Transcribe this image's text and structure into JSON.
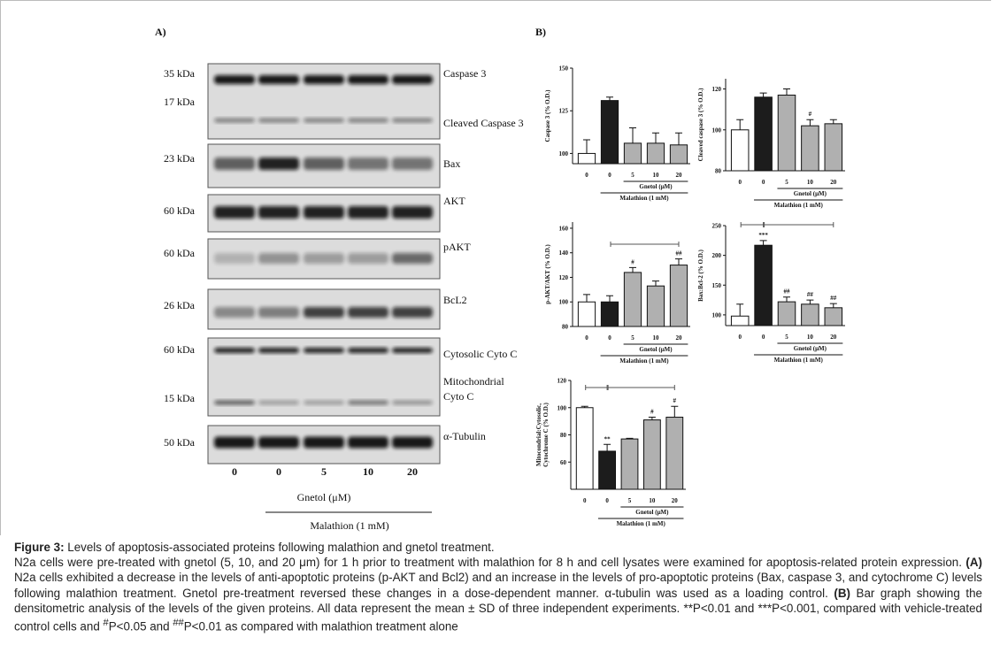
{
  "panels": {
    "a": "A)",
    "b": "B)"
  },
  "blot": {
    "kda": [
      "35 kDa",
      "17 kDa",
      "23 kDa",
      "60 kDa",
      "60 kDa",
      "26 kDa",
      "60 kDa",
      "15 kDa",
      "50 kDa"
    ],
    "proteins": [
      "Caspase 3",
      "Cleaved Caspase 3",
      "Bax",
      "AKT",
      "pAKT",
      "BcL2",
      "Cytosolic  Cyto C",
      "Mitochondrial",
      "Cyto C",
      "α-Tubulin"
    ],
    "lanes": [
      "0",
      "0",
      "5",
      "10",
      "20"
    ],
    "treatment": "Gnetol (μM)",
    "base": "Malathion (1 mM)"
  },
  "chart_data": [
    {
      "type": "bar",
      "ylabel": [
        "Caspase 3 (% O.D.)"
      ],
      "categories": [
        "0",
        "0",
        "5",
        "10",
        "20"
      ],
      "xlabel": "Gnetol (μM)",
      "xlabel2": "Malathion (1 mM)",
      "values": [
        100,
        131,
        106,
        106,
        105
      ],
      "errors": [
        8,
        2,
        9,
        6,
        7
      ],
      "colors": [
        "#ffffff",
        "#1c1c1c",
        "#b0b0b0",
        "#b0b0b0",
        "#b0b0b0"
      ],
      "annotations": [
        null,
        null,
        null,
        null,
        null
      ],
      "ylim": [
        94,
        150
      ],
      "yticks": [
        100,
        125,
        150
      ]
    },
    {
      "type": "bar",
      "ylabel": [
        "Cleaved caspase 3 (% O.D.)"
      ],
      "categories": [
        "0",
        "0",
        "5",
        "10",
        "20"
      ],
      "xlabel": "Gnetol (μM)",
      "xlabel2": "Malathion (1 mM)",
      "values": [
        100,
        116,
        117,
        102,
        103
      ],
      "errors": [
        5,
        2,
        3,
        3,
        2
      ],
      "colors": [
        "#ffffff",
        "#1c1c1c",
        "#b0b0b0",
        "#b0b0b0",
        "#b0b0b0"
      ],
      "annotations": [
        null,
        null,
        null,
        "#",
        null
      ],
      "ylim": [
        80,
        125
      ],
      "yticks": [
        80,
        100,
        120
      ]
    },
    {
      "type": "bar",
      "ylabel": [
        "p-AKT/AKT (% O.D.)"
      ],
      "categories": [
        "0",
        "0",
        "5",
        "10",
        "20"
      ],
      "xlabel": "Gnetol (μM)",
      "xlabel2": "Malathion (1 mM)",
      "values": [
        100,
        100,
        124,
        113,
        130
      ],
      "errors": [
        6,
        5,
        4,
        4,
        5
      ],
      "colors": [
        "#ffffff",
        "#1c1c1c",
        "#b0b0b0",
        "#b0b0b0",
        "#b0b0b0"
      ],
      "annotations": [
        null,
        null,
        "#",
        null,
        "##"
      ],
      "ylim": [
        80,
        165
      ],
      "yticks": [
        80,
        100,
        120,
        140,
        160
      ]
    },
    {
      "type": "bar",
      "ylabel": [
        "Bax:Bcl-2 (% O.D.)"
      ],
      "categories": [
        "0",
        "0",
        "5",
        "10",
        "20"
      ],
      "xlabel": "Gnetol (μM)",
      "xlabel2": "Malathion (1 mM)",
      "values": [
        98,
        217,
        122,
        118,
        112
      ],
      "errors": [
        20,
        8,
        8,
        7,
        7
      ],
      "colors": [
        "#ffffff",
        "#1c1c1c",
        "#b0b0b0",
        "#b0b0b0",
        "#b0b0b0"
      ],
      "annotations": [
        null,
        "***",
        "##",
        "##",
        "##"
      ],
      "ylim": [
        82,
        250
      ],
      "yticks": [
        100,
        150,
        200,
        250
      ]
    },
    {
      "type": "bar",
      "ylabel": [
        "Mitocondrial:Cytosolic,",
        "Cytochrome C (% O.D.)"
      ],
      "categories": [
        "0",
        "0",
        "5",
        "10",
        "20"
      ],
      "xlabel": "Gnetol (μM)",
      "xlabel2": "Malathion (1 mM)",
      "values": [
        100,
        68,
        77,
        91,
        93
      ],
      "errors": [
        1,
        5,
        0.5,
        2,
        8
      ],
      "colors": [
        "#ffffff",
        "#1c1c1c",
        "#b0b0b0",
        "#b0b0b0",
        "#b0b0b0"
      ],
      "annotations": [
        null,
        "**",
        null,
        "#",
        "#"
      ],
      "ylim": [
        40,
        120
      ],
      "yticks": [
        60,
        80,
        100,
        120
      ]
    }
  ],
  "caption": {
    "title": "Figure 3:",
    "subtitle": " Levels of apoptosis-associated proteins following malathion and gnetol treatment.",
    "body": [
      "N2a cells were pre-treated with gnetol (5, 10, and 20 μm) for 1 h prior to treatment with malathion for 8 h and cell lysates were examined for apoptosis-related protein expression. ",
      "(A)",
      " N2a cells exhibited a decrease in the levels of anti-apoptotic proteins (p-AKT and Bcl2) and an increase in the levels of pro-apoptotic proteins (Bax, caspase 3, and cytochrome C) levels following  malathion treatment. Gnetol pre-treatment reversed these changes in a dose-dependent manner. α-tubulin was used as a loading control. ",
      "(B)",
      " Bar graph showing the densitometric analysis of the levels of the given proteins. All data represent the mean ± SD of three independent experiments. **P<0.01 and ***P<0.001, compared with vehicle-treated control cells and ",
      "#",
      "P<0.05 and ",
      "##",
      "P<0.01 as compared with malathion treatment alone"
    ]
  }
}
